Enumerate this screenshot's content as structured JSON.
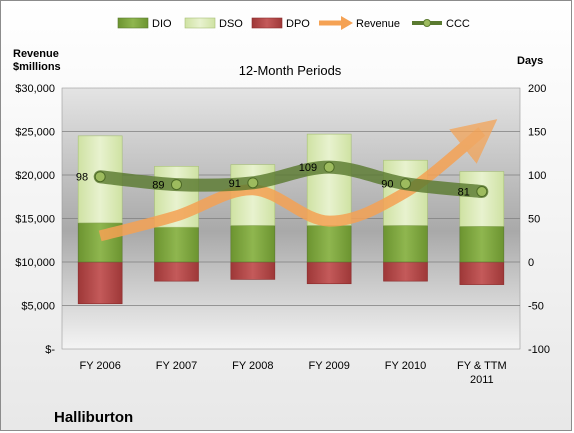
{
  "chart_data": {
    "type": "bar",
    "company": "Halliburton",
    "subtitle": "12-Month Periods",
    "left_axis_title": [
      "Revenue",
      "$millions"
    ],
    "right_axis_title": "Days",
    "categories": [
      [
        "FY 2006"
      ],
      [
        "FY 2007"
      ],
      [
        "FY 2008"
      ],
      [
        "FY 2009"
      ],
      [
        "FY 2010"
      ],
      [
        "FY & TTM",
        "2011"
      ]
    ],
    "left_axis": {
      "min": 0,
      "max": 30000,
      "step": 5000,
      "tick_labels": [
        "$-",
        "$5,000",
        "$10,000",
        "$15,000",
        "$20,000",
        "$25,000",
        "$30,000"
      ]
    },
    "right_axis": {
      "min": -100,
      "max": 200,
      "step": 50,
      "tick_labels": [
        "-100",
        "-50",
        "0",
        "50",
        "100",
        "150",
        "200"
      ]
    },
    "legend": [
      "DIO",
      "DSO",
      "DPO",
      "Revenue",
      "CCC"
    ],
    "series": [
      {
        "name": "DIO",
        "axis": "right",
        "values": [
          45,
          40,
          42,
          42,
          42,
          41
        ],
        "color": "#7aa33b"
      },
      {
        "name": "DSO",
        "axis": "right",
        "values": [
          100,
          70,
          70,
          105,
          75,
          63
        ],
        "color": "#dbeab7"
      },
      {
        "name": "DPO",
        "axis": "right",
        "values": [
          -48,
          -22,
          -20,
          -25,
          -22,
          -26
        ],
        "color": "#b44a4a"
      },
      {
        "name": "Revenue",
        "axis": "left",
        "values": [
          13000,
          15300,
          18300,
          14700,
          18000,
          25000
        ],
        "color": "#f5a254"
      },
      {
        "name": "CCC",
        "axis": "right",
        "values": [
          98,
          89,
          91,
          109,
          90,
          81
        ],
        "labels": [
          "98",
          "89",
          "91",
          "109",
          "90",
          "81"
        ],
        "color": "#5a7a30"
      }
    ]
  }
}
